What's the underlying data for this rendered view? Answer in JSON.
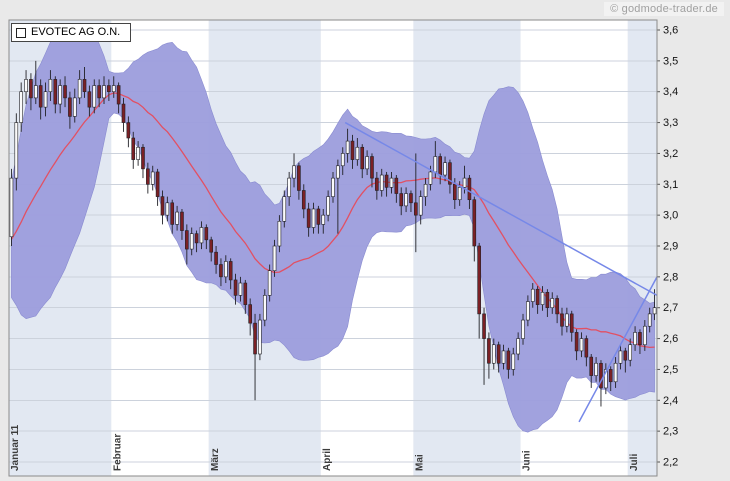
{
  "watermark": "© godmode-trader.de",
  "chart_data": {
    "type": "candlestick",
    "title": "EVOTEC AG O.N.",
    "y_axis": {
      "min": 2.2,
      "max": 3.6,
      "step": 0.1,
      "decimal_separator": ","
    },
    "x_axis": {
      "months": [
        {
          "label": "Januar 11",
          "start_index": 0
        },
        {
          "label": "Februar",
          "start_index": 21
        },
        {
          "label": "März",
          "start_index": 41
        },
        {
          "label": "April",
          "start_index": 64
        },
        {
          "label": "Mai",
          "start_index": 83
        },
        {
          "label": "Juni",
          "start_index": 105
        },
        {
          "label": "Juli",
          "start_index": 127
        }
      ],
      "total_candles": 133
    },
    "bollinger": {
      "period": 20,
      "stddev_mult": 2
    },
    "ma_warmup_closes": [
      2.78,
      2.8,
      2.77,
      2.82,
      2.85,
      2.83,
      2.87,
      2.9,
      2.88,
      2.92,
      2.95,
      2.93,
      2.96,
      2.99,
      2.97,
      3.0,
      3.03,
      3.01,
      3.05
    ],
    "candles_ohlc": [
      [
        2.93,
        3.15,
        2.9,
        3.12
      ],
      [
        3.12,
        3.33,
        3.08,
        3.3
      ],
      [
        3.3,
        3.43,
        3.27,
        3.4
      ],
      [
        3.4,
        3.47,
        3.36,
        3.44
      ],
      [
        3.44,
        3.46,
        3.34,
        3.38
      ],
      [
        3.38,
        3.5,
        3.36,
        3.42
      ],
      [
        3.42,
        3.44,
        3.31,
        3.35
      ],
      [
        3.35,
        3.43,
        3.32,
        3.4
      ],
      [
        3.4,
        3.47,
        3.37,
        3.44
      ],
      [
        3.44,
        3.45,
        3.33,
        3.36
      ],
      [
        3.36,
        3.44,
        3.33,
        3.42
      ],
      [
        3.42,
        3.45,
        3.35,
        3.38
      ],
      [
        3.38,
        3.4,
        3.28,
        3.32
      ],
      [
        3.32,
        3.41,
        3.3,
        3.38
      ],
      [
        3.38,
        3.47,
        3.36,
        3.44
      ],
      [
        3.44,
        3.48,
        3.38,
        3.4
      ],
      [
        3.4,
        3.42,
        3.32,
        3.35
      ],
      [
        3.35,
        3.44,
        3.33,
        3.42
      ],
      [
        3.42,
        3.44,
        3.35,
        3.38
      ],
      [
        3.38,
        3.45,
        3.36,
        3.42
      ],
      [
        3.42,
        3.44,
        3.37,
        3.4
      ],
      [
        3.4,
        3.45,
        3.38,
        3.42
      ],
      [
        3.42,
        3.43,
        3.33,
        3.36
      ],
      [
        3.36,
        3.38,
        3.27,
        3.3
      ],
      [
        3.3,
        3.32,
        3.22,
        3.25
      ],
      [
        3.25,
        3.27,
        3.15,
        3.18
      ],
      [
        3.18,
        3.24,
        3.16,
        3.22
      ],
      [
        3.22,
        3.23,
        3.12,
        3.15
      ],
      [
        3.15,
        3.17,
        3.07,
        3.1
      ],
      [
        3.1,
        3.16,
        3.08,
        3.14
      ],
      [
        3.14,
        3.15,
        3.03,
        3.06
      ],
      [
        3.06,
        3.08,
        2.97,
        3.0
      ],
      [
        3.0,
        3.06,
        2.98,
        3.04
      ],
      [
        3.04,
        3.05,
        2.94,
        2.97
      ],
      [
        2.97,
        3.03,
        2.95,
        3.01
      ],
      [
        3.01,
        3.02,
        2.92,
        2.95
      ],
      [
        2.95,
        2.97,
        2.84,
        2.89
      ],
      [
        2.89,
        2.96,
        2.87,
        2.94
      ],
      [
        2.94,
        2.95,
        2.88,
        2.91
      ],
      [
        2.91,
        2.98,
        2.89,
        2.96
      ],
      [
        2.96,
        2.97,
        2.89,
        2.92
      ],
      [
        2.92,
        2.93,
        2.85,
        2.88
      ],
      [
        2.88,
        2.9,
        2.81,
        2.84
      ],
      [
        2.84,
        2.86,
        2.77,
        2.8
      ],
      [
        2.8,
        2.87,
        2.78,
        2.85
      ],
      [
        2.85,
        2.86,
        2.76,
        2.79
      ],
      [
        2.79,
        2.81,
        2.71,
        2.74
      ],
      [
        2.74,
        2.8,
        2.72,
        2.78
      ],
      [
        2.78,
        2.79,
        2.68,
        2.71
      ],
      [
        2.71,
        2.73,
        2.61,
        2.65
      ],
      [
        2.65,
        2.68,
        2.4,
        2.55
      ],
      [
        2.55,
        2.68,
        2.53,
        2.66
      ],
      [
        2.66,
        2.76,
        2.64,
        2.74
      ],
      [
        2.74,
        2.84,
        2.72,
        2.82
      ],
      [
        2.82,
        2.92,
        2.8,
        2.9
      ],
      [
        2.9,
        3.0,
        2.88,
        2.98
      ],
      [
        2.98,
        3.08,
        2.96,
        3.06
      ],
      [
        3.06,
        3.14,
        3.03,
        3.12
      ],
      [
        3.12,
        3.2,
        3.09,
        3.16
      ],
      [
        3.16,
        3.17,
        3.05,
        3.08
      ],
      [
        3.08,
        3.1,
        2.99,
        3.02
      ],
      [
        3.02,
        3.04,
        2.93,
        2.96
      ],
      [
        2.96,
        3.04,
        2.94,
        3.02
      ],
      [
        3.02,
        3.03,
        2.94,
        2.97
      ],
      [
        2.97,
        3.02,
        2.94,
        3.0
      ],
      [
        3.0,
        3.08,
        2.98,
        3.06
      ],
      [
        3.06,
        3.14,
        3.04,
        3.12
      ],
      [
        3.12,
        3.18,
        2.94,
        3.16
      ],
      [
        3.16,
        3.22,
        3.13,
        3.2
      ],
      [
        3.2,
        3.28,
        3.17,
        3.24
      ],
      [
        3.24,
        3.26,
        3.15,
        3.18
      ],
      [
        3.18,
        3.25,
        3.16,
        3.22
      ],
      [
        3.22,
        3.23,
        3.12,
        3.15
      ],
      [
        3.15,
        3.21,
        3.13,
        3.19
      ],
      [
        3.19,
        3.2,
        3.09,
        3.12
      ],
      [
        3.12,
        3.14,
        3.05,
        3.08
      ],
      [
        3.08,
        3.15,
        3.06,
        3.13
      ],
      [
        3.13,
        3.14,
        3.06,
        3.09
      ],
      [
        3.09,
        3.14,
        3.07,
        3.12
      ],
      [
        3.12,
        3.13,
        3.04,
        3.07
      ],
      [
        3.07,
        3.09,
        3.0,
        3.03
      ],
      [
        3.03,
        3.09,
        3.01,
        3.07
      ],
      [
        3.07,
        3.08,
        3.01,
        3.04
      ],
      [
        3.04,
        3.2,
        2.88,
        3.0
      ],
      [
        3.0,
        3.08,
        2.97,
        3.06
      ],
      [
        3.06,
        3.12,
        3.03,
        3.1
      ],
      [
        3.1,
        3.16,
        3.08,
        3.14
      ],
      [
        3.14,
        3.24,
        3.12,
        3.19
      ],
      [
        3.19,
        3.2,
        3.1,
        3.13
      ],
      [
        3.13,
        3.19,
        3.11,
        3.17
      ],
      [
        3.17,
        3.18,
        3.07,
        3.1
      ],
      [
        3.1,
        3.12,
        3.02,
        3.05
      ],
      [
        3.05,
        3.11,
        3.03,
        3.09
      ],
      [
        3.09,
        3.16,
        3.07,
        3.12
      ],
      [
        3.12,
        3.13,
        3.02,
        3.05
      ],
      [
        3.05,
        3.06,
        2.85,
        2.9
      ],
      [
        2.9,
        2.91,
        2.6,
        2.68
      ],
      [
        2.68,
        2.7,
        2.45,
        2.6
      ],
      [
        2.6,
        2.62,
        2.47,
        2.52
      ],
      [
        2.52,
        2.6,
        2.5,
        2.58
      ],
      [
        2.58,
        2.59,
        2.49,
        2.52
      ],
      [
        2.52,
        2.58,
        2.5,
        2.56
      ],
      [
        2.56,
        2.57,
        2.47,
        2.5
      ],
      [
        2.5,
        2.57,
        2.48,
        2.55
      ],
      [
        2.55,
        2.62,
        2.53,
        2.6
      ],
      [
        2.6,
        2.68,
        2.58,
        2.66
      ],
      [
        2.66,
        2.74,
        2.64,
        2.72
      ],
      [
        2.72,
        2.78,
        2.7,
        2.76
      ],
      [
        2.76,
        2.77,
        2.68,
        2.71
      ],
      [
        2.71,
        2.77,
        2.69,
        2.75
      ],
      [
        2.75,
        2.76,
        2.67,
        2.7
      ],
      [
        2.7,
        2.75,
        2.68,
        2.73
      ],
      [
        2.73,
        2.74,
        2.65,
        2.68
      ],
      [
        2.68,
        2.7,
        2.61,
        2.64
      ],
      [
        2.64,
        2.7,
        2.62,
        2.68
      ],
      [
        2.68,
        2.69,
        2.59,
        2.62
      ],
      [
        2.62,
        2.63,
        2.53,
        2.56
      ],
      [
        2.56,
        2.62,
        2.54,
        2.6
      ],
      [
        2.6,
        2.61,
        2.51,
        2.54
      ],
      [
        2.54,
        2.55,
        2.44,
        2.48
      ],
      [
        2.48,
        2.54,
        2.46,
        2.52
      ],
      [
        2.52,
        2.53,
        2.38,
        2.44
      ],
      [
        2.44,
        2.52,
        2.42,
        2.5
      ],
      [
        2.5,
        2.51,
        2.43,
        2.46
      ],
      [
        2.46,
        2.54,
        2.44,
        2.52
      ],
      [
        2.52,
        2.58,
        2.5,
        2.56
      ],
      [
        2.56,
        2.57,
        2.49,
        2.53
      ],
      [
        2.53,
        2.6,
        2.51,
        2.58
      ],
      [
        2.58,
        2.64,
        2.56,
        2.62
      ],
      [
        2.62,
        2.63,
        2.55,
        2.58
      ],
      [
        2.58,
        2.66,
        2.56,
        2.64
      ],
      [
        2.64,
        2.7,
        2.62,
        2.68
      ],
      [
        2.68,
        2.76,
        2.66,
        2.7
      ]
    ],
    "trendlines": [
      {
        "name": "descending-resistance",
        "from": {
          "index": 69,
          "price": 3.3
        },
        "to": {
          "index": 133,
          "price": 2.74
        }
      },
      {
        "name": "ascending-support",
        "from": {
          "index": 117,
          "price": 2.33
        },
        "to": {
          "index": 133,
          "price": 2.8
        }
      }
    ],
    "colors": {
      "page_bg": "#e9e9e9",
      "stripe_a": "#e2e8f2",
      "stripe_b": "#ffffff",
      "grid_line": "#ccd2dc",
      "band_fill": "#9c9ddc",
      "band_edge": "#898bd0",
      "ma_line": "#e25063",
      "trend_line": "#7688e8",
      "candle_up_fill": "#fbfbfb",
      "candle_down_fill": "#7b2025",
      "candle_stroke": "#212126",
      "plot_border": "#8a8a8a",
      "axis_text": "#141414",
      "month_text": "#3c3c3c"
    }
  }
}
